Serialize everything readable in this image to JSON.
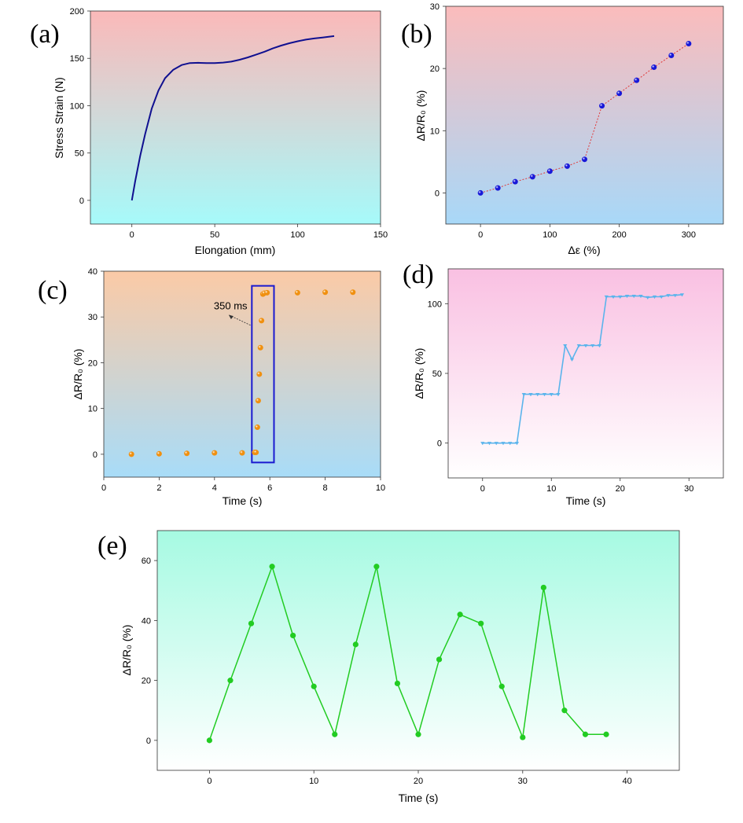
{
  "colors": {
    "a_bg_top": "#fbb9b9",
    "a_bg_bottom": "#a6fafa",
    "a_line": "#101090",
    "b_bg_top": "#fbbcbc",
    "b_bg_bottom": "#a8d8f8",
    "b_marker": "#1818d8",
    "b_line": "#e03a3a",
    "c_bg_top": "#fbcaa6",
    "c_bg_bottom": "#a8dcf8",
    "c_marker": "#f09010",
    "c_box": "#1a1ad0",
    "d_bg_top": "#f9c0e2",
    "d_bg_bottom": "#ffffff",
    "d_line": "#5ab4ec",
    "e_bg_top": "#a6fae2",
    "e_bg_bottom": "#ffffff",
    "e_line": "#22cc22"
  },
  "chart_data": [
    {
      "id": "a",
      "panel_label": "(a)",
      "type": "line",
      "xlabel": "Elongation (mm)",
      "ylabel": "Stress Strain (N)",
      "xlim": [
        -25,
        150
      ],
      "ylim": [
        -25,
        200
      ],
      "xticks": [
        0,
        50,
        100,
        150
      ],
      "yticks": [
        0,
        50,
        100,
        150,
        200
      ],
      "x": [
        0,
        2,
        5,
        8,
        12,
        16,
        20,
        25,
        30,
        35,
        40,
        45,
        50,
        55,
        60,
        65,
        70,
        75,
        80,
        85,
        90,
        95,
        100,
        105,
        110,
        115,
        122
      ],
      "y": [
        0,
        20,
        47,
        70,
        97,
        116,
        129,
        138,
        143,
        145,
        145.3,
        145,
        145,
        145.5,
        146.5,
        148.5,
        151,
        154,
        157,
        160.5,
        163.5,
        166,
        168,
        169.8,
        171,
        172,
        173.5
      ]
    },
    {
      "id": "b",
      "panel_label": "(b)",
      "type": "line",
      "xlabel": "Δε (%)",
      "ylabel": "ΔR/R₀ (%)",
      "xlim": [
        -50,
        350
      ],
      "ylim": [
        -5,
        30
      ],
      "xticks": [
        0,
        100,
        200,
        300
      ],
      "yticks": [
        0,
        10,
        20,
        30
      ],
      "x": [
        0,
        25,
        50,
        75,
        100,
        125,
        150,
        175,
        200,
        225,
        250,
        275,
        300
      ],
      "y": [
        0,
        0.8,
        1.8,
        2.6,
        3.5,
        4.3,
        5.4,
        14,
        16,
        18.1,
        20.2,
        22.1,
        24
      ]
    },
    {
      "id": "c",
      "panel_label": "(c)",
      "type": "scatter",
      "xlabel": "Time (s)",
      "ylabel": "ΔR/R₀ (%)",
      "xlim": [
        0,
        10
      ],
      "ylim": [
        -5,
        40
      ],
      "xticks": [
        0,
        2,
        4,
        6,
        8,
        10
      ],
      "yticks": [
        0,
        10,
        20,
        30,
        40
      ],
      "x": [
        1,
        2,
        3,
        4,
        5,
        5.45,
        5.5,
        5.55,
        5.58,
        5.62,
        5.66,
        5.7,
        5.75,
        5.8,
        5.9,
        7,
        8,
        9
      ],
      "y": [
        0,
        0.1,
        0.2,
        0.3,
        0.3,
        0.4,
        0.4,
        5.9,
        11.7,
        17.5,
        23.3,
        29.2,
        35,
        35.2,
        35.3,
        35.3,
        35.4,
        35.4
      ],
      "highlight_box": {
        "x0": 5.35,
        "x1": 6.15,
        "y0": -1.8,
        "y1": 36.8
      },
      "annotation": {
        "text": "350 ms",
        "x": 4.6,
        "y": 32.5,
        "arrow_to": [
          5.3,
          28.2
        ]
      }
    },
    {
      "id": "d",
      "panel_label": "(d)",
      "type": "line",
      "xlabel": "Time (s)",
      "ylabel": "ΔR/R₀ (%)",
      "xlim": [
        -5,
        35
      ],
      "ylim": [
        -25,
        125
      ],
      "xticks": [
        0,
        10,
        20,
        30
      ],
      "yticks": [
        0,
        50,
        100
      ],
      "x": [
        0,
        1,
        2,
        3,
        4,
        5,
        6,
        7,
        8,
        9,
        10,
        11,
        12,
        13,
        14,
        15,
        16,
        17,
        18,
        19,
        20,
        21,
        22,
        23,
        24,
        25,
        26,
        27,
        28,
        29
      ],
      "y": [
        0,
        0,
        0,
        0,
        0,
        0,
        35,
        35,
        35,
        35,
        35,
        35,
        70,
        60,
        70,
        70,
        70,
        70,
        105,
        105,
        105,
        105.5,
        105.5,
        105.5,
        104.5,
        105,
        105,
        106,
        106,
        106.5
      ]
    },
    {
      "id": "e",
      "panel_label": "(e)",
      "type": "line",
      "xlabel": "Time (s)",
      "ylabel": "ΔR/R₀ (%)",
      "xlim": [
        -5,
        45
      ],
      "ylim": [
        -10,
        70
      ],
      "xticks": [
        0,
        10,
        20,
        30,
        40
      ],
      "yticks": [
        0,
        20,
        40,
        60
      ],
      "x": [
        0,
        2,
        4,
        6,
        8,
        10,
        12,
        14,
        16,
        18,
        20,
        22,
        24,
        26,
        28,
        30,
        32,
        34,
        36,
        38
      ],
      "y": [
        0,
        20,
        39,
        58,
        35,
        18,
        2,
        32,
        58,
        19,
        2,
        27,
        42,
        39,
        18,
        1,
        51,
        10,
        2,
        2
      ]
    }
  ]
}
